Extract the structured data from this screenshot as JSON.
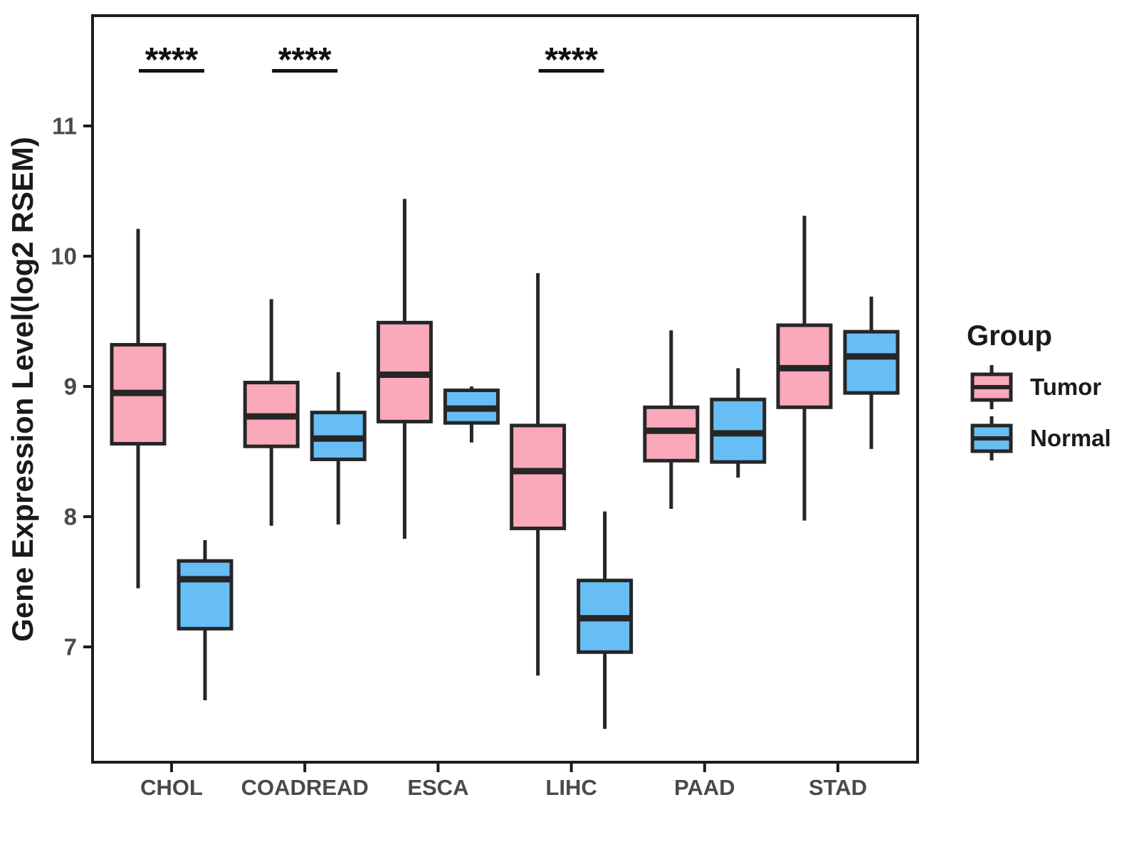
{
  "chart_data": {
    "type": "boxplot",
    "title": "",
    "ylabel": "Gene Expression Level(log2 RSEM)",
    "xlabel": "",
    "categories": [
      "CHOL",
      "COADREAD",
      "ESCA",
      "LIHC",
      "PAAD",
      "STAD"
    ],
    "y_ticks": [
      7,
      8,
      9,
      10,
      11
    ],
    "ylim": [
      6.1,
      11.85
    ],
    "grid": false,
    "legend_position": "right",
    "groups": [
      {
        "name": "Tumor",
        "color": "#F9A9BA",
        "boxes": [
          {
            "category": "CHOL",
            "low": 7.45,
            "q1": 8.56,
            "median": 8.95,
            "q3": 9.32,
            "high": 10.21
          },
          {
            "category": "COADREAD",
            "low": 7.93,
            "q1": 8.54,
            "median": 8.77,
            "q3": 9.03,
            "high": 9.67
          },
          {
            "category": "ESCA",
            "low": 7.83,
            "q1": 8.73,
            "median": 9.09,
            "q3": 9.49,
            "high": 10.44
          },
          {
            "category": "LIHC",
            "low": 6.78,
            "q1": 7.91,
            "median": 8.35,
            "q3": 8.7,
            "high": 9.87
          },
          {
            "category": "PAAD",
            "low": 8.06,
            "q1": 8.43,
            "median": 8.66,
            "q3": 8.84,
            "high": 9.43
          },
          {
            "category": "STAD",
            "low": 7.97,
            "q1": 8.84,
            "median": 9.14,
            "q3": 9.47,
            "high": 10.31
          }
        ]
      },
      {
        "name": "Normal",
        "color": "#67BEF4",
        "boxes": [
          {
            "category": "CHOL",
            "low": 6.59,
            "q1": 7.14,
            "median": 7.52,
            "q3": 7.66,
            "high": 7.82
          },
          {
            "category": "COADREAD",
            "low": 7.94,
            "q1": 8.44,
            "median": 8.6,
            "q3": 8.8,
            "high": 9.11
          },
          {
            "category": "ESCA",
            "low": 8.57,
            "q1": 8.72,
            "median": 8.83,
            "q3": 8.97,
            "high": 9.0
          },
          {
            "category": "LIHC",
            "low": 6.37,
            "q1": 6.96,
            "median": 7.22,
            "q3": 7.51,
            "high": 8.04
          },
          {
            "category": "PAAD",
            "low": 8.3,
            "q1": 8.42,
            "median": 8.64,
            "q3": 8.9,
            "high": 9.14
          },
          {
            "category": "STAD",
            "low": 8.52,
            "q1": 8.95,
            "median": 9.23,
            "q3": 9.42,
            "high": 9.69
          }
        ]
      }
    ],
    "significance": [
      {
        "category": "CHOL",
        "label": "****"
      },
      {
        "category": "COADREAD",
        "label": "****"
      },
      {
        "category": "LIHC",
        "label": "****"
      }
    ],
    "legend": {
      "title": "Group",
      "entries": [
        {
          "label": "Tumor",
          "color": "#F9A9BA"
        },
        {
          "label": "Normal",
          "color": "#67BEF4"
        }
      ]
    },
    "colors": {
      "frame": "#1C1C1C",
      "box_border": "#262626",
      "axis_text": "#4a4a4a",
      "title_text": "#1a1a1a"
    }
  }
}
